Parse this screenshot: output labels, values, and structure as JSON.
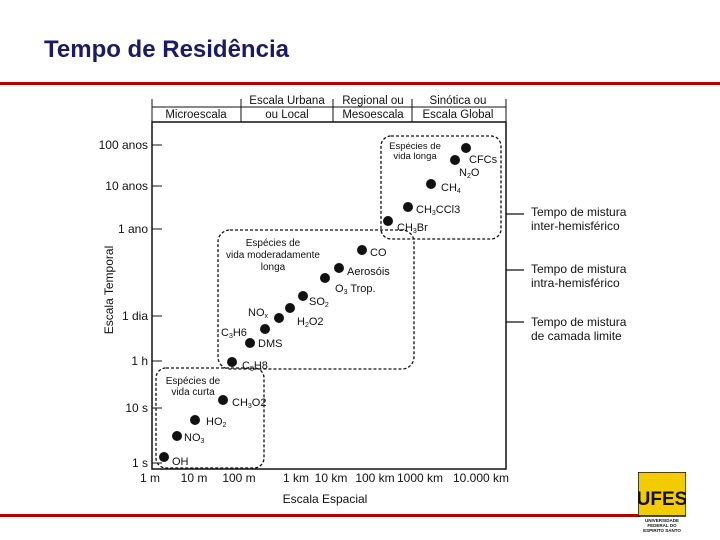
{
  "title": "Tempo de Residência",
  "scales_header": [
    {
      "line1": "Microescala",
      "line2": ""
    },
    {
      "line1": "Escala Urbana",
      "line2": "ou Local"
    },
    {
      "line1": "Regional ou",
      "line2": "Mesoescala"
    },
    {
      "line1": "Sinótica ou",
      "line2": "Escala Global"
    }
  ],
  "y_axis": {
    "label": "Escala Temporal",
    "ticks": [
      "100 anos",
      "10 anos",
      "1 ano",
      "1 dia",
      "1 h",
      "10 s",
      "1 s"
    ]
  },
  "x_axis": {
    "label": "Escala Espacial",
    "ticks": [
      "1 m",
      "10 m",
      "100 m",
      "1 km",
      "10 km",
      "100 km",
      "1000 km",
      "10.000 km"
    ]
  },
  "groups": [
    {
      "lines": [
        "Espécies de",
        "vida longa"
      ]
    },
    {
      "lines": [
        "Espécies de",
        "vida moderadamente",
        "longa"
      ]
    },
    {
      "lines": [
        "Espécies de",
        "vida curta"
      ]
    }
  ],
  "species": [
    {
      "main": "CFCs",
      "sub": "",
      "rest": ""
    },
    {
      "main": "N",
      "sub": "2",
      "rest": "O"
    },
    {
      "main": "CH",
      "sub": "4",
      "rest": ""
    },
    {
      "main": "CH",
      "sub": "3",
      "rest": "CCl3"
    },
    {
      "main": "CH",
      "sub": "3",
      "rest": "Br"
    },
    {
      "main": "CO",
      "sub": "",
      "rest": ""
    },
    {
      "main": "Aerosóis",
      "sub": "",
      "rest": ""
    },
    {
      "main": "O",
      "sub": "3",
      "rest": " Trop."
    },
    {
      "main": "SO",
      "sub": "2",
      "rest": ""
    },
    {
      "main": "NO",
      "sub": "x",
      "rest": ""
    },
    {
      "main": "H",
      "sub": "2",
      "rest": "O2"
    },
    {
      "main": "C",
      "sub": "3",
      "rest": "H6"
    },
    {
      "main": "DMS",
      "sub": "",
      "rest": ""
    },
    {
      "main": "C",
      "sub": "5",
      "rest": "H8"
    },
    {
      "main": "CH",
      "sub": "3",
      "rest": "O2"
    },
    {
      "main": "HO",
      "sub": "2",
      "rest": ""
    },
    {
      "main": "NO",
      "sub": "3",
      "rest": ""
    },
    {
      "main": "OH",
      "sub": "",
      "rest": ""
    }
  ],
  "mixing_times": [
    {
      "line1": "Tempo de mistura",
      "line2": "inter-hemisférico"
    },
    {
      "line1": "Tempo de mistura",
      "line2": "intra-hemisférico"
    },
    {
      "line1": "Tempo de mistura",
      "line2": "de camada limite"
    }
  ],
  "logo": {
    "letters": "UFES",
    "lines": [
      "UNIVERSIDADE",
      "FEDERAL DO",
      "ESPIRITO SANTO"
    ]
  },
  "colors": {
    "title": "#1a1a66",
    "rule": "#b00000",
    "logo_bg": "#f2cc00",
    "logo_fg": "#111111"
  }
}
